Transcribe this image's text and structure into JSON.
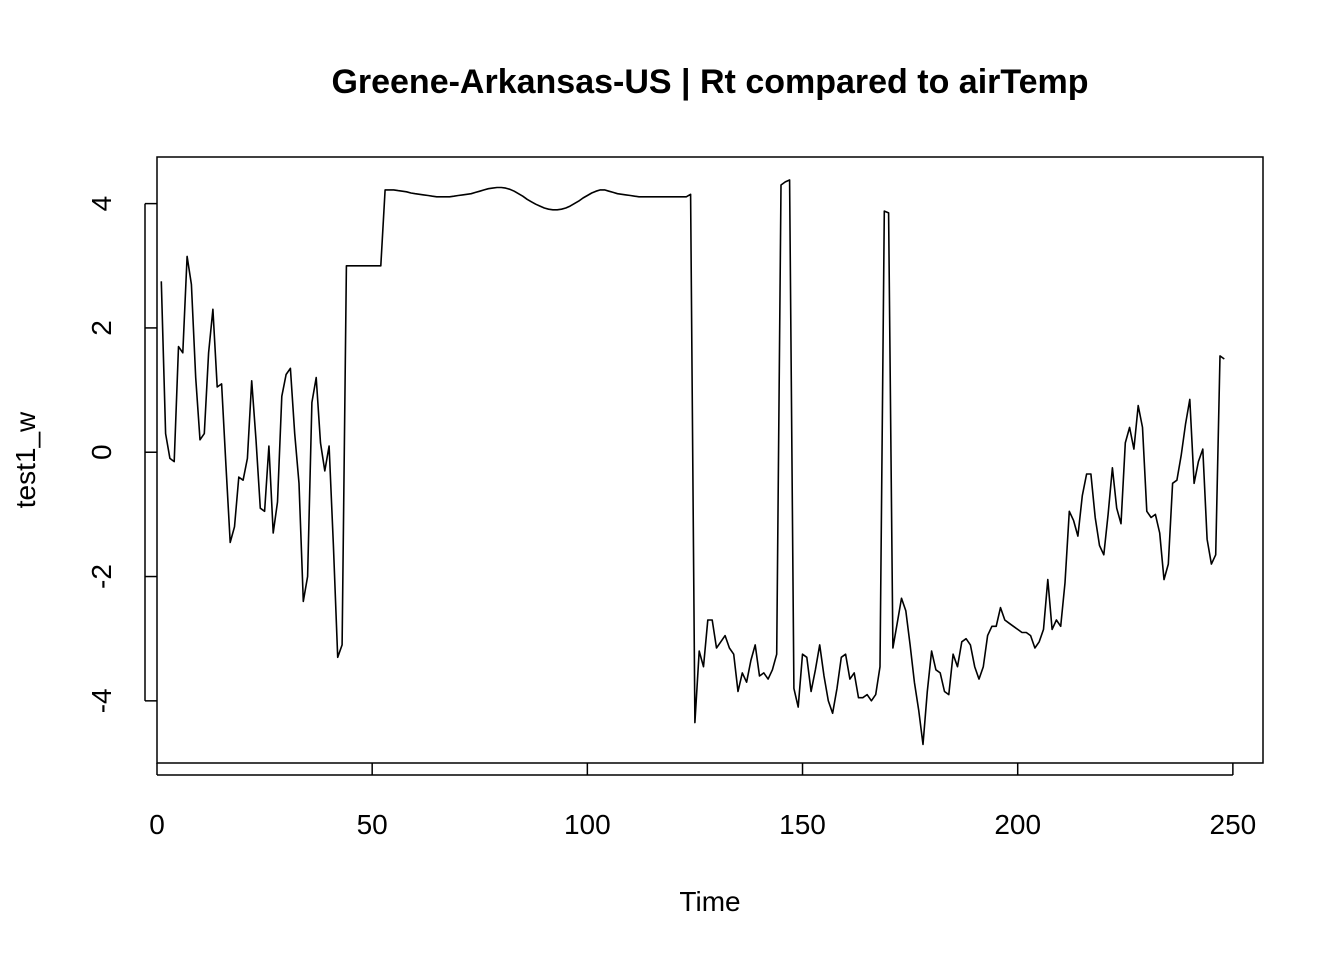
{
  "chart_data": {
    "type": "line",
    "title": "Greene-Arkansas-US | Rt compared to airTemp",
    "xlabel": "Time",
    "ylabel": "test1_w",
    "xlim": [
      0,
      257
    ],
    "ylim": [
      -5,
      4.75
    ],
    "xticks": [
      0,
      50,
      100,
      150,
      200,
      250
    ],
    "xtick_labels": [
      "0",
      "50",
      "100",
      "150",
      "200",
      "250"
    ],
    "yticks": [
      -4,
      -2,
      0,
      2,
      4
    ],
    "ytick_labels": [
      "-4",
      "-2",
      "0",
      "2",
      "4"
    ],
    "grid": false,
    "legend": "none",
    "colors": {
      "line": "#000000",
      "frame": "#000000",
      "background": "#ffffff"
    },
    "series": [
      {
        "x": [
          1,
          2,
          3,
          4,
          5,
          6,
          7,
          8,
          9,
          10,
          11,
          12,
          13,
          14,
          15,
          16,
          17,
          18,
          19,
          20,
          21,
          22,
          23,
          24,
          25,
          26,
          27,
          28,
          29,
          30,
          31,
          32,
          33,
          34,
          35,
          36,
          37,
          38,
          39,
          40,
          41,
          42,
          43,
          44,
          45,
          46,
          47,
          48,
          49,
          50,
          51,
          52,
          53,
          54,
          55,
          56,
          57,
          58,
          59,
          60,
          61,
          62,
          63,
          64,
          65,
          66,
          67,
          68,
          69,
          70,
          71,
          72,
          73,
          74,
          75,
          76,
          77,
          78,
          79,
          80,
          81,
          82,
          83,
          84,
          85,
          86,
          87,
          88,
          89,
          90,
          91,
          92,
          93,
          94,
          95,
          96,
          97,
          98,
          99,
          100,
          101,
          102,
          103,
          104,
          105,
          106,
          107,
          108,
          109,
          110,
          111,
          112,
          113,
          114,
          115,
          116,
          117,
          118,
          119,
          120,
          121,
          122,
          123,
          124,
          125,
          126,
          127,
          128,
          129,
          130,
          131,
          132,
          133,
          134,
          135,
          136,
          137,
          138,
          139,
          140,
          141,
          142,
          143,
          144,
          145,
          146,
          147,
          148,
          149,
          150,
          151,
          152,
          153,
          154,
          155,
          156,
          157,
          158,
          159,
          160,
          161,
          162,
          163,
          164,
          165,
          166,
          167,
          168,
          169,
          170,
          171,
          172,
          173,
          174,
          175,
          176,
          177,
          178,
          179,
          180,
          181,
          182,
          183,
          184,
          185,
          186,
          187,
          188,
          189,
          190,
          191,
          192,
          193,
          194,
          195,
          196,
          197,
          198,
          199,
          200,
          201,
          202,
          203,
          204,
          205,
          206,
          207,
          208,
          209,
          210,
          211,
          212,
          213,
          214,
          215,
          216,
          217,
          218,
          219,
          220,
          221,
          222,
          223,
          224,
          225,
          226,
          227,
          228,
          229,
          230,
          231,
          232,
          233,
          234,
          235,
          236,
          237,
          238,
          239,
          240,
          241,
          242,
          243,
          244,
          245,
          246,
          247,
          248
        ],
        "y": [
          2.75,
          0.3,
          -0.1,
          -0.15,
          1.7,
          1.6,
          3.15,
          2.7,
          1.2,
          0.2,
          0.3,
          1.6,
          2.3,
          1.05,
          1.1,
          -0.2,
          -1.45,
          -1.2,
          -0.4,
          -0.45,
          -0.1,
          1.15,
          0.2,
          -0.9,
          -0.95,
          0.1,
          -1.3,
          -0.8,
          0.9,
          1.25,
          1.35,
          0.3,
          -0.5,
          -2.4,
          -2.0,
          0.8,
          1.2,
          0.15,
          -0.3,
          0.1,
          -1.5,
          -3.3,
          -3.1,
          3.0,
          3.0,
          3.0,
          3.0,
          3.0,
          3.0,
          3.0,
          3.0,
          3.0,
          4.22,
          4.22,
          4.22,
          4.21,
          4.2,
          4.19,
          4.17,
          4.16,
          4.15,
          4.14,
          4.13,
          4.12,
          4.11,
          4.11,
          4.11,
          4.11,
          4.12,
          4.13,
          4.14,
          4.15,
          4.16,
          4.18,
          4.2,
          4.22,
          4.24,
          4.25,
          4.26,
          4.26,
          4.25,
          4.23,
          4.2,
          4.16,
          4.12,
          4.07,
          4.03,
          3.99,
          3.96,
          3.93,
          3.91,
          3.9,
          3.9,
          3.91,
          3.93,
          3.96,
          4.0,
          4.04,
          4.09,
          4.13,
          4.17,
          4.2,
          4.22,
          4.22,
          4.2,
          4.18,
          4.16,
          4.15,
          4.14,
          4.13,
          4.12,
          4.11,
          4.11,
          4.11,
          4.11,
          4.11,
          4.11,
          4.11,
          4.11,
          4.11,
          4.11,
          4.11,
          4.11,
          4.15,
          -4.35,
          -3.2,
          -3.45,
          -2.7,
          -2.7,
          -3.15,
          -3.05,
          -2.95,
          -3.15,
          -3.25,
          -3.85,
          -3.55,
          -3.7,
          -3.35,
          -3.1,
          -3.6,
          -3.55,
          -3.65,
          -3.5,
          -3.25,
          4.3,
          4.35,
          4.38,
          -3.8,
          -4.1,
          -3.25,
          -3.3,
          -3.85,
          -3.5,
          -3.1,
          -3.6,
          -4.0,
          -4.2,
          -3.8,
          -3.3,
          -3.25,
          -3.65,
          -3.55,
          -3.95,
          -3.95,
          -3.9,
          -4.0,
          -3.9,
          -3.45,
          3.88,
          3.85,
          -3.15,
          -2.75,
          -2.35,
          -2.55,
          -3.1,
          -3.7,
          -4.15,
          -4.7,
          -3.85,
          -3.2,
          -3.5,
          -3.55,
          -3.85,
          -3.9,
          -3.25,
          -3.45,
          -3.05,
          -3.0,
          -3.1,
          -3.45,
          -3.65,
          -3.45,
          -2.95,
          -2.8,
          -2.8,
          -2.5,
          -2.7,
          -2.75,
          -2.8,
          -2.85,
          -2.9,
          -2.9,
          -2.95,
          -3.15,
          -3.05,
          -2.85,
          -2.05,
          -2.85,
          -2.7,
          -2.8,
          -2.1,
          -0.95,
          -1.1,
          -1.35,
          -0.7,
          -0.35,
          -0.35,
          -1.05,
          -1.5,
          -1.65,
          -1.0,
          -0.25,
          -0.9,
          -1.15,
          0.15,
          0.4,
          0.05,
          0.75,
          0.4,
          -0.95,
          -1.05,
          -1.0,
          -1.3,
          -2.05,
          -1.8,
          -0.5,
          -0.45,
          -0.05,
          0.45,
          0.85,
          -0.5,
          -0.15,
          0.05,
          -1.4,
          -1.8,
          -1.65,
          1.55,
          1.5
        ]
      }
    ]
  }
}
